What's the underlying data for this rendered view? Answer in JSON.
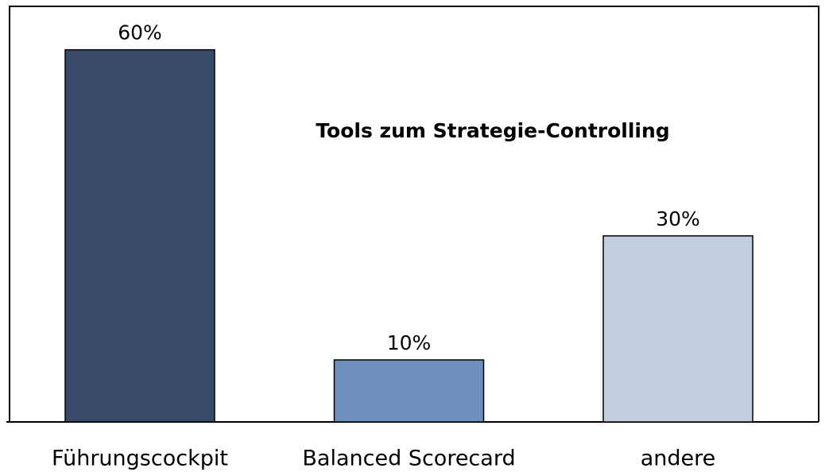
{
  "chart_data": {
    "type": "bar",
    "title": "Tools zum Strategie-Controlling",
    "categories": [
      "Führungscockpit",
      "Balanced Scorecard",
      "andere"
    ],
    "values": [
      60,
      10,
      30
    ],
    "value_labels": [
      "60%",
      "10%",
      "30%"
    ],
    "colors": [
      "#394b6b",
      "#6d8fbd",
      "#c3cde0"
    ],
    "ylim": [
      0,
      67
    ]
  }
}
